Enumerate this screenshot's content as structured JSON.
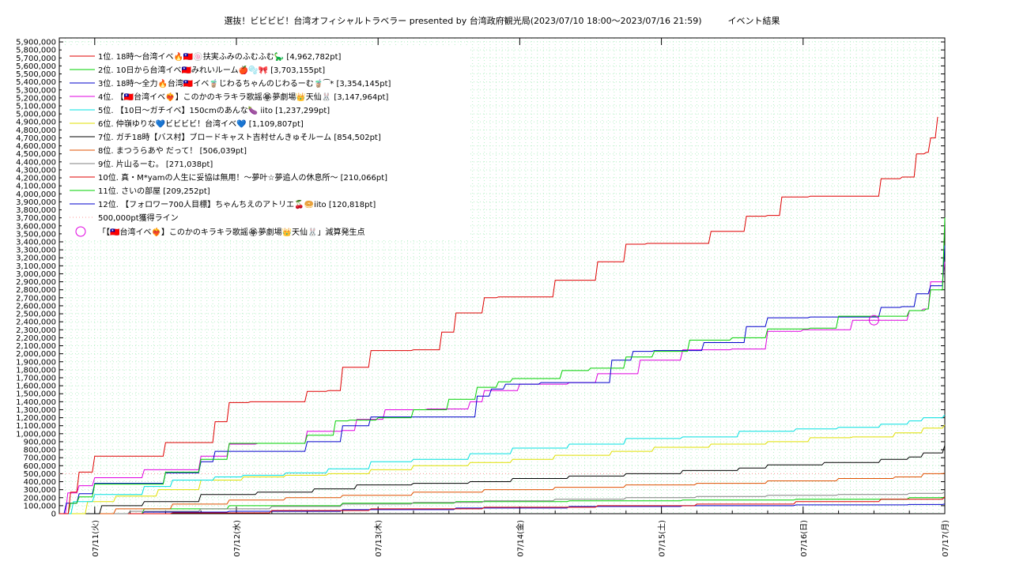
{
  "chart_data": {
    "type": "line",
    "title": "選抜！ビビビビ！台湾オフィシャルトラベラー presented by 台湾政府観光局(2023/07/10 18:00～2023/07/16 21:59)　　　イベント結果",
    "xlabel": "",
    "ylabel": "",
    "ylim": [
      0,
      5950000
    ],
    "xlim": [
      0,
      6.25
    ],
    "grid": true,
    "legend_position": "top-left",
    "x_ticks": [
      {
        "value": 0.25,
        "label": "07/11(火)"
      },
      {
        "value": 1.25,
        "label": "07/12(水)"
      },
      {
        "value": 2.25,
        "label": "07/13(木)"
      },
      {
        "value": 3.25,
        "label": "07/14(金)"
      },
      {
        "value": 4.25,
        "label": "07/15(土)"
      },
      {
        "value": 5.25,
        "label": "07/16(日)"
      },
      {
        "value": 6.25,
        "label": "07/17(月)"
      }
    ],
    "y_tick_step": 100000,
    "series": [
      {
        "name": "1位. 18時〜台湾イベ🔥🇹🇼🍥扶実ふみのふむふむ🦕 [4,962,782pt]",
        "color": "#e00000",
        "x": [
          0,
          0.08,
          0.14,
          0.25,
          0.75,
          1.1,
          1.2,
          1.35,
          1.75,
          1.9,
          2.0,
          2.2,
          2.5,
          2.7,
          2.8,
          3.0,
          3.1,
          3.2,
          3.5,
          3.8,
          4.0,
          4.15,
          4.3,
          4.6,
          4.85,
          5.0,
          5.1,
          5.3,
          5.5,
          5.8,
          5.95,
          6.05,
          6.12,
          6.15,
          6.2
        ],
        "values": [
          0,
          270000,
          520000,
          720000,
          890000,
          1150000,
          1390000,
          1400000,
          1530000,
          1540000,
          1830000,
          2040000,
          2050000,
          2270000,
          2510000,
          2700000,
          2710000,
          2710000,
          2920000,
          3150000,
          3370000,
          3380000,
          3380000,
          3530000,
          3720000,
          3730000,
          3960000,
          3970000,
          3970000,
          4190000,
          4210000,
          4500000,
          4520000,
          4700000,
          4962782
        ]
      },
      {
        "name": "2位. 10日から台湾イベ🇹🇼みれいルーム🍎🫧🎀 [3,703,155pt]",
        "color": "#00d000",
        "x": [
          0,
          0.08,
          0.14,
          0.25,
          0.75,
          1.0,
          1.2,
          1.45,
          1.75,
          1.95,
          2.05,
          2.25,
          2.5,
          2.75,
          2.95,
          3.1,
          3.2,
          3.55,
          3.75,
          4.0,
          4.2,
          4.45,
          4.75,
          5.0,
          5.3,
          5.5,
          5.85,
          6.0,
          6.12,
          6.15,
          6.25
        ],
        "values": [
          0,
          130000,
          210000,
          370000,
          520000,
          680000,
          880000,
          880000,
          980000,
          1160000,
          1170000,
          1200000,
          1300000,
          1430000,
          1580000,
          1650000,
          1690000,
          1790000,
          1820000,
          1960000,
          2030000,
          2170000,
          2200000,
          2310000,
          2320000,
          2470000,
          2470000,
          2540000,
          2560000,
          2800000,
          3703155
        ]
      },
      {
        "name": "3位. 18時〜全力🔥台湾🇹🇼イベ🧋じわるちゃんのじわるーむ🧋⁀* [3,354,145pt]",
        "color": "#0000cc",
        "x": [
          0,
          0.05,
          0.14,
          0.25,
          0.75,
          1.0,
          1.1,
          1.3,
          1.75,
          2.0,
          2.2,
          2.5,
          2.95,
          3.05,
          3.15,
          3.4,
          3.9,
          4.05,
          4.2,
          4.55,
          4.85,
          5.0,
          5.3,
          5.55,
          5.8,
          5.95,
          6.05,
          6.12,
          6.15,
          6.25
        ],
        "values": [
          0,
          130000,
          250000,
          380000,
          510000,
          650000,
          780000,
          780000,
          900000,
          1100000,
          1210000,
          1210000,
          1470000,
          1560000,
          1620000,
          1640000,
          1920000,
          2030000,
          2040000,
          2140000,
          2340000,
          2450000,
          2460000,
          2460000,
          2580000,
          2590000,
          2750000,
          2750000,
          2850000,
          3354145
        ]
      },
      {
        "name": "4位. 【🇹🇼台湾イベ❤️‍🔥】このかのキラキラ歌謡🏵夢劇場👑天仙🐰 [3,147,964pt]",
        "color": "#e000e0",
        "x": [
          0,
          0.06,
          0.14,
          0.25,
          0.6,
          1.0,
          1.2,
          1.4,
          1.75,
          2.0,
          2.1,
          2.3,
          2.6,
          2.9,
          3.0,
          3.25,
          3.6,
          3.8,
          4.1,
          4.4,
          4.75,
          5.0,
          5.25,
          5.6,
          5.8,
          6.0,
          6.1,
          6.15,
          6.25
        ],
        "values": [
          0,
          260000,
          350000,
          450000,
          550000,
          720000,
          870000,
          880000,
          1030000,
          1040000,
          1180000,
          1300000,
          1310000,
          1400000,
          1540000,
          1620000,
          1640000,
          1750000,
          1920000,
          2050000,
          2060000,
          2280000,
          2300000,
          2420000,
          2420000,
          2540000,
          2560000,
          2900000,
          3147964
        ]
      },
      {
        "name": "5位. 【10日〜ガチイベ】150cmのあんな🍆 iito [1,237,299pt]",
        "color": "#00e0e0",
        "x": [
          0,
          0.1,
          0.25,
          0.6,
          0.8,
          1.1,
          1.3,
          1.6,
          1.9,
          2.2,
          2.5,
          2.9,
          3.2,
          3.6,
          4.0,
          4.4,
          4.8,
          5.2,
          5.5,
          5.8,
          6.0,
          6.1,
          6.25
        ],
        "values": [
          0,
          150000,
          240000,
          340000,
          420000,
          460000,
          480000,
          510000,
          560000,
          650000,
          680000,
          750000,
          820000,
          870000,
          940000,
          960000,
          1030000,
          1060000,
          1080000,
          1120000,
          1160000,
          1200000,
          1237299
        ]
      },
      {
        "name": "6位. 仲嶺ゆりな💙ビビビビ！台湾イベ💙 [1,109,807pt]",
        "color": "#e0e000",
        "x": [
          0,
          0.2,
          0.4,
          0.7,
          1.0,
          1.3,
          1.6,
          1.9,
          2.2,
          2.5,
          2.9,
          3.2,
          3.5,
          3.9,
          4.2,
          4.6,
          5.0,
          5.3,
          5.6,
          5.9,
          6.1,
          6.25
        ],
        "values": [
          0,
          150000,
          220000,
          300000,
          420000,
          460000,
          480000,
          500000,
          550000,
          600000,
          640000,
          680000,
          730000,
          780000,
          830000,
          870000,
          900000,
          950000,
          960000,
          1010000,
          1070000,
          1109807
        ]
      },
      {
        "name": "7位. ガチ18時【バス村】ブロードキャスト吉村せんきゅそルーム [854,502pt]",
        "color": "#000000",
        "x": [
          0,
          0.3,
          0.6,
          1.0,
          1.4,
          1.8,
          2.1,
          2.5,
          2.9,
          3.2,
          3.6,
          4.0,
          4.4,
          4.8,
          5.0,
          5.4,
          5.8,
          6.0,
          6.1,
          6.25
        ],
        "values": [
          0,
          100000,
          150000,
          240000,
          270000,
          310000,
          360000,
          380000,
          400000,
          440000,
          470000,
          500000,
          540000,
          570000,
          610000,
          640000,
          680000,
          710000,
          760000,
          854502
        ]
      },
      {
        "name": "8位. まつうらあや だって！ [506,039pt]",
        "color": "#e05000",
        "x": [
          0,
          0.4,
          0.8,
          1.2,
          1.6,
          2.0,
          2.5,
          3.0,
          3.5,
          4.0,
          4.5,
          5.0,
          5.5,
          5.9,
          6.1,
          6.25
        ],
        "values": [
          0,
          60000,
          120000,
          170000,
          200000,
          230000,
          270000,
          300000,
          330000,
          360000,
          380000,
          410000,
          440000,
          460000,
          500000,
          506039
        ]
      },
      {
        "name": "9位. 片山るーむ。 [271,038pt]",
        "color": "#808080",
        "x": [
          0,
          0.5,
          1.0,
          1.5,
          2.0,
          2.5,
          3.0,
          3.5,
          4.0,
          4.5,
          5.0,
          5.5,
          6.0,
          6.25
        ],
        "values": [
          0,
          30000,
          60000,
          90000,
          120000,
          140000,
          160000,
          180000,
          200000,
          215000,
          230000,
          240000,
          255000,
          271038
        ]
      },
      {
        "name": "10位. 真・M*yamの人生に妥協は無用！～夢叶☆夢追人の休息所～ [210,066pt]",
        "color": "#e00000",
        "x": [
          0,
          0.8,
          1.5,
          2.2,
          3.0,
          3.8,
          4.5,
          5.2,
          5.8,
          6.25
        ],
        "values": [
          0,
          10000,
          40000,
          60000,
          80000,
          100000,
          120000,
          150000,
          180000,
          210066
        ]
      },
      {
        "name": "11位. さいの部屋 [209,252pt]",
        "color": "#00d000",
        "x": [
          0,
          0.6,
          1.2,
          2.0,
          2.8,
          3.6,
          4.4,
          5.2,
          6.0,
          6.25
        ],
        "values": [
          0,
          60000,
          100000,
          130000,
          150000,
          160000,
          170000,
          180000,
          200000,
          209252
        ]
      },
      {
        "name": "12位. 【フォロワー700人目標】ちゃんちえのアトリエ🍒🥯iito [120,818pt]",
        "color": "#0000cc",
        "x": [
          0,
          0.6,
          1.2,
          2.0,
          2.8,
          3.6,
          4.4,
          5.2,
          6.0,
          6.25
        ],
        "values": [
          0,
          20000,
          30000,
          50000,
          70000,
          90000,
          100000,
          110000,
          115000,
          120818
        ]
      }
    ],
    "reference_line": {
      "name": "500,000pt獲得ライン",
      "value": 500000,
      "color": "#ff9999"
    },
    "marker": {
      "name": "「【🇹🇼台湾イベ❤️‍🔥】このかのキラキラ歌謡🏵夢劇場👑天仙🐰」減算発生点",
      "x": 5.75,
      "value": 2420000,
      "color": "#e000e0"
    }
  }
}
